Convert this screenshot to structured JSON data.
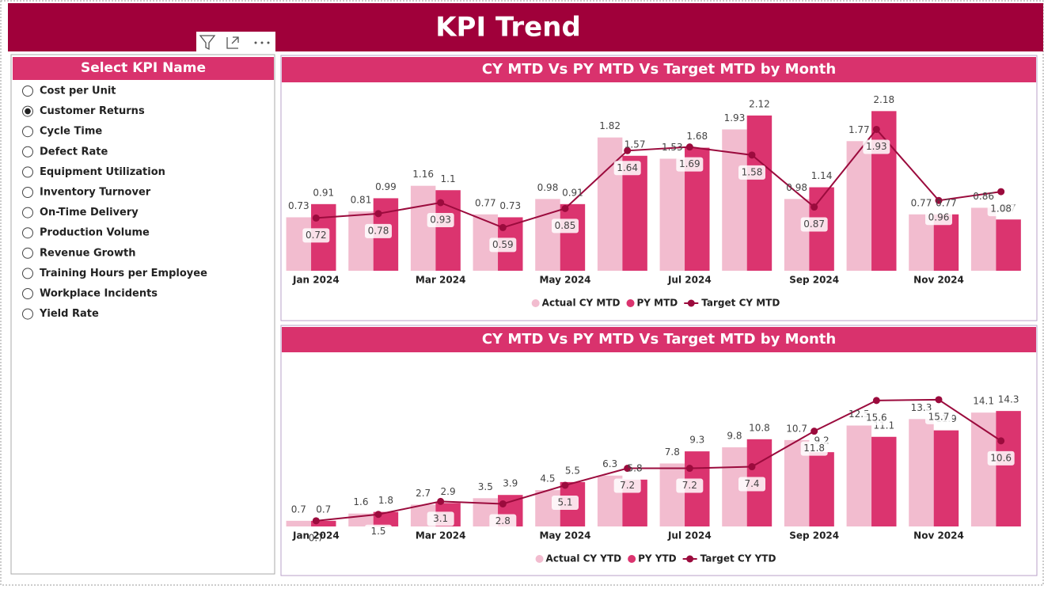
{
  "header": {
    "title": "KPI Trend"
  },
  "slicer": {
    "title": "Select KPI Name",
    "selected": 1,
    "items": [
      "Cost per Unit",
      "Customer Returns",
      "Cycle Time",
      "Defect Rate",
      "Equipment Utilization",
      "Inventory Turnover",
      "On-Time Delivery",
      "Production Volume",
      "Revenue Growth",
      "Training Hours per Employee",
      "Workplace Incidents",
      "Yield Rate"
    ]
  },
  "chart_data": [
    {
      "type": "combo",
      "title": "CY MTD Vs PY MTD Vs Target MTD by Month",
      "categories": [
        "Jan 2024",
        null,
        "Mar 2024",
        null,
        "May 2024",
        null,
        "Jul 2024",
        null,
        "Sep 2024",
        null,
        "Nov 2024",
        null
      ],
      "ylim": [
        0,
        2.4
      ],
      "series": [
        {
          "name": "Actual CY MTD",
          "type": "bar",
          "color": "#f2bccf",
          "values": [
            0.73,
            0.81,
            1.16,
            0.77,
            0.98,
            1.82,
            1.53,
            1.93,
            0.98,
            1.77,
            0.77,
            0.86
          ]
        },
        {
          "name": "PY MTD",
          "type": "bar",
          "color": "#db346f",
          "values": [
            0.91,
            0.99,
            1.1,
            0.73,
            0.91,
            1.57,
            1.68,
            2.12,
            1.14,
            2.18,
            0.77,
            0.7
          ]
        },
        {
          "name": "Target CY MTD",
          "type": "line",
          "color": "#9b0b3d",
          "values": [
            0.72,
            0.78,
            0.93,
            0.59,
            0.85,
            1.64,
            1.69,
            1.58,
            0.87,
            1.93,
            0.96,
            1.08
          ]
        }
      ]
    },
    {
      "type": "combo",
      "title": "CY MTD Vs PY MTD Vs Target MTD by Month",
      "categories": [
        "Jan 2024",
        null,
        "Mar 2024",
        null,
        "May 2024",
        null,
        "Jul 2024",
        null,
        "Sep 2024",
        null,
        "Nov 2024",
        null
      ],
      "ylim": [
        0,
        20
      ],
      "series": [
        {
          "name": "Actual CY YTD",
          "type": "bar",
          "color": "#f2bccf",
          "values": [
            0.7,
            1.6,
            2.7,
            3.5,
            4.5,
            6.3,
            7.8,
            9.8,
            10.7,
            12.5,
            13.3,
            14.1
          ]
        },
        {
          "name": "PY YTD",
          "type": "bar",
          "color": "#db346f",
          "values": [
            0.7,
            1.8,
            2.9,
            3.9,
            5.5,
            5.8,
            9.3,
            10.8,
            9.2,
            11.1,
            11.9,
            14.3
          ]
        },
        {
          "name": "Target CY YTD",
          "type": "line",
          "color": "#9b0b3d",
          "values": [
            0.7,
            1.5,
            3.1,
            2.8,
            5.1,
            7.2,
            7.2,
            7.4,
            11.8,
            15.6,
            15.7,
            10.6
          ]
        }
      ]
    }
  ]
}
